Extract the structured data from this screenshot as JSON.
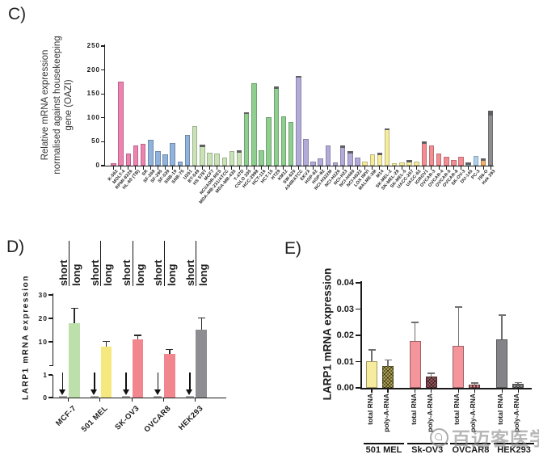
{
  "figure": {
    "panel_c_label": "C)",
    "panel_d_label": "D)",
    "panel_e_label": "E)",
    "watermark_text": "百迈客医学"
  },
  "colors": {
    "axis": "#1a1a1a",
    "error_cap": "#5f5f63",
    "c_group_colors": {
      "leukemia": "#ee83b2",
      "cns": "#8fb3dd",
      "breast": "#c9e3b6",
      "colon": "#8ecf90",
      "lung": "#b2abd9",
      "melanoma": "#f5ec9d",
      "ovarian": "#f28d93",
      "prostate": "#aed2ea",
      "renal": "#f2ae6c",
      "control": "#8d8d90"
    }
  },
  "chart_data": [
    {
      "id": "C",
      "type": "bar",
      "ylabel_lines": [
        "Relative mRNA expression",
        "normalised against housekeeping",
        "gene (OAZI)"
      ],
      "ylim": [
        0,
        250
      ],
      "yticks": [
        0,
        50,
        100,
        150,
        200,
        250
      ],
      "bars": [
        {
          "label": "K-562",
          "value": 5,
          "group": "leukemia",
          "cap": false
        },
        {
          "label": "MOLT-4",
          "value": 175,
          "group": "leukemia",
          "cap": false
        },
        {
          "label": "RPMI-8226",
          "value": 26,
          "group": "leukemia",
          "cap": false
        },
        {
          "label": "HL-60 (TB)",
          "value": 42,
          "group": "leukemia",
          "cap": false
        },
        {
          "label": "SR",
          "value": 45,
          "group": "leukemia",
          "cap": false
        },
        {
          "label": "SF-268",
          "value": 54,
          "group": "cns",
          "cap": false
        },
        {
          "label": "SF-295",
          "value": 30,
          "group": "cns",
          "cap": false
        },
        {
          "label": "SF-539",
          "value": 24,
          "group": "cns",
          "cap": false
        },
        {
          "label": "SNB-19",
          "value": 47,
          "group": "cns",
          "cap": false
        },
        {
          "label": "SNB-75",
          "value": 8,
          "group": "cns",
          "cap": false
        },
        {
          "label": "U251",
          "value": 64,
          "group": "cns",
          "cap": false
        },
        {
          "label": "BT-549",
          "value": 83,
          "group": "breast",
          "cap": false
        },
        {
          "label": "HS 578T",
          "value": 44,
          "group": "breast",
          "cap": true
        },
        {
          "label": "MCF7",
          "value": 27,
          "group": "breast",
          "cap": false
        },
        {
          "label": "NCI/ADR-RES",
          "value": 25,
          "group": "breast",
          "cap": false
        },
        {
          "label": "MDA-MB-231/ATCC",
          "value": 17,
          "group": "breast",
          "cap": false
        },
        {
          "label": "MDA-MB-435",
          "value": 30,
          "group": "breast",
          "cap": false
        },
        {
          "label": "T-47D",
          "value": 32,
          "group": "breast",
          "cap": true
        },
        {
          "label": "COLO 205",
          "value": 112,
          "group": "colon",
          "cap": true
        },
        {
          "label": "HCC-2998",
          "value": 172,
          "group": "colon",
          "cap": false
        },
        {
          "label": "HCT-116",
          "value": 32,
          "group": "colon",
          "cap": false
        },
        {
          "label": "HCT-15",
          "value": 101,
          "group": "colon",
          "cap": false
        },
        {
          "label": "HT29",
          "value": 165,
          "group": "colon",
          "cap": true
        },
        {
          "label": "KM12",
          "value": 103,
          "group": "colon",
          "cap": false
        },
        {
          "label": "SW-620",
          "value": 92,
          "group": "colon",
          "cap": false
        },
        {
          "label": "A549/ATCC",
          "value": 188,
          "group": "lung",
          "cap": true
        },
        {
          "label": "EKVX",
          "value": 56,
          "group": "lung",
          "cap": false
        },
        {
          "label": "HOP-62",
          "value": 8,
          "group": "lung",
          "cap": false
        },
        {
          "label": "HOP-92",
          "value": 16,
          "group": "lung",
          "cap": false
        },
        {
          "label": "NCI-H322M",
          "value": 42,
          "group": "lung",
          "cap": false
        },
        {
          "label": "NCI-H226",
          "value": 6,
          "group": "lung",
          "cap": false
        },
        {
          "label": "NCI-H23",
          "value": 42,
          "group": "lung",
          "cap": true
        },
        {
          "label": "NCI-H460",
          "value": 30,
          "group": "lung",
          "cap": true
        },
        {
          "label": "NCI-H522",
          "value": 17,
          "group": "lung",
          "cap": false
        },
        {
          "label": "LOX IMVI",
          "value": 8,
          "group": "melanoma",
          "cap": false
        },
        {
          "label": "MALME-3M",
          "value": 24,
          "group": "melanoma",
          "cap": false
        },
        {
          "label": "M14",
          "value": 27,
          "group": "melanoma",
          "cap": true
        },
        {
          "label": "SK-MEL-2",
          "value": 78,
          "group": "melanoma",
          "cap": true
        },
        {
          "label": "SK-MEL-28",
          "value": 5,
          "group": "melanoma",
          "cap": false
        },
        {
          "label": "SK-MEL-5",
          "value": 7,
          "group": "melanoma",
          "cap": false
        },
        {
          "label": "UACC-257",
          "value": 11,
          "group": "melanoma",
          "cap": true
        },
        {
          "label": "UACC-62",
          "value": 8,
          "group": "melanoma",
          "cap": false
        },
        {
          "label": "IGROV1",
          "value": 50,
          "group": "ovarian",
          "cap": true
        },
        {
          "label": "OVCAR-3",
          "value": 42,
          "group": "ovarian",
          "cap": false
        },
        {
          "label": "OVCAR-4",
          "value": 26,
          "group": "ovarian",
          "cap": false
        },
        {
          "label": "OVCAR-5",
          "value": 19,
          "group": "ovarian",
          "cap": false
        },
        {
          "label": "OVCAR-8",
          "value": 12,
          "group": "ovarian",
          "cap": false
        },
        {
          "label": "SK-OV-3",
          "value": 19,
          "group": "ovarian",
          "cap": false
        },
        {
          "label": "DU-145",
          "value": 6,
          "group": "prostate",
          "cap": true
        },
        {
          "label": "PC-3",
          "value": 21,
          "group": "prostate",
          "cap": false
        },
        {
          "label": "786-O",
          "value": 15,
          "group": "renal",
          "cap": true
        },
        {
          "label": "Hek 293",
          "value": 115,
          "group": "control",
          "cap": true
        }
      ]
    },
    {
      "id": "D",
      "type": "bar",
      "ylabel": "LARP1 mRNA expression",
      "axis_break": true,
      "lower_ticks": [
        0,
        1
      ],
      "upper_ticks": [
        10,
        20,
        30
      ],
      "column_titles": [
        "short",
        "long"
      ],
      "groups": [
        {
          "cell": "MCF-7",
          "color": "#bcdfab",
          "short_value": 0.05,
          "short_arrow": true,
          "long_value": 18,
          "long_err": 24.5
        },
        {
          "cell": "501 MEL",
          "color": "#f5e87e",
          "short_value": 0.05,
          "short_arrow": true,
          "long_value": 7.8,
          "long_err": 10.5
        },
        {
          "cell": "SK-OV3",
          "color": "#f2868e",
          "short_value": 0.05,
          "short_arrow": true,
          "long_value": 11,
          "long_err": 13
        },
        {
          "cell": "OVCAR8",
          "color": "#f2868e",
          "short_value": 0.05,
          "short_arrow": true,
          "long_value": 4.8,
          "long_err": 7
        },
        {
          "cell": "HEK293",
          "color": "#8d8d92",
          "short_value": 0.05,
          "short_arrow": true,
          "long_value": 15.2,
          "long_err": 20.5
        }
      ]
    },
    {
      "id": "E",
      "type": "bar",
      "ylabel": "LARP1 mRNA expression",
      "ylim": [
        0,
        0.04
      ],
      "yticks": [
        "0.00",
        "0.01",
        "0.02",
        "0.03",
        "0.04"
      ],
      "groups": [
        {
          "cell": "501 MEL",
          "bars": [
            {
              "label": "total RNA",
              "value": 0.0103,
              "err": 0.0147,
              "color": "#f7eb9e",
              "hatch": false
            },
            {
              "label": "poly-A-RNA",
              "value": 0.0083,
              "err": 0.0108,
              "color": "#b5a954",
              "hatch": true
            }
          ]
        },
        {
          "cell": "Sk-OV3",
          "bars": [
            {
              "label": "total RNA",
              "value": 0.0177,
              "err": 0.0252,
              "color": "#f4959b",
              "hatch": false
            },
            {
              "label": "poly-A-RNA",
              "value": 0.0042,
              "err": 0.0057,
              "color": "#9e5a60",
              "hatch": true
            }
          ]
        },
        {
          "cell": "OVCAR8",
          "bars": [
            {
              "label": "total RNA",
              "value": 0.016,
              "err": 0.031,
              "color": "#f4959b",
              "hatch": false
            },
            {
              "label": "poly-A-RNA",
              "value": 0.0012,
              "err": 0.0021,
              "color": "#e98f96",
              "hatch": true
            }
          ]
        },
        {
          "cell": "HEK293",
          "bars": [
            {
              "label": "total RNA",
              "value": 0.0185,
              "err": 0.028,
              "color": "#848488",
              "hatch": false
            },
            {
              "label": "poly-A-RNA",
              "value": 0.0015,
              "err": 0.0023,
              "color": "#9c9c9f",
              "hatch": true
            }
          ]
        }
      ]
    }
  ]
}
